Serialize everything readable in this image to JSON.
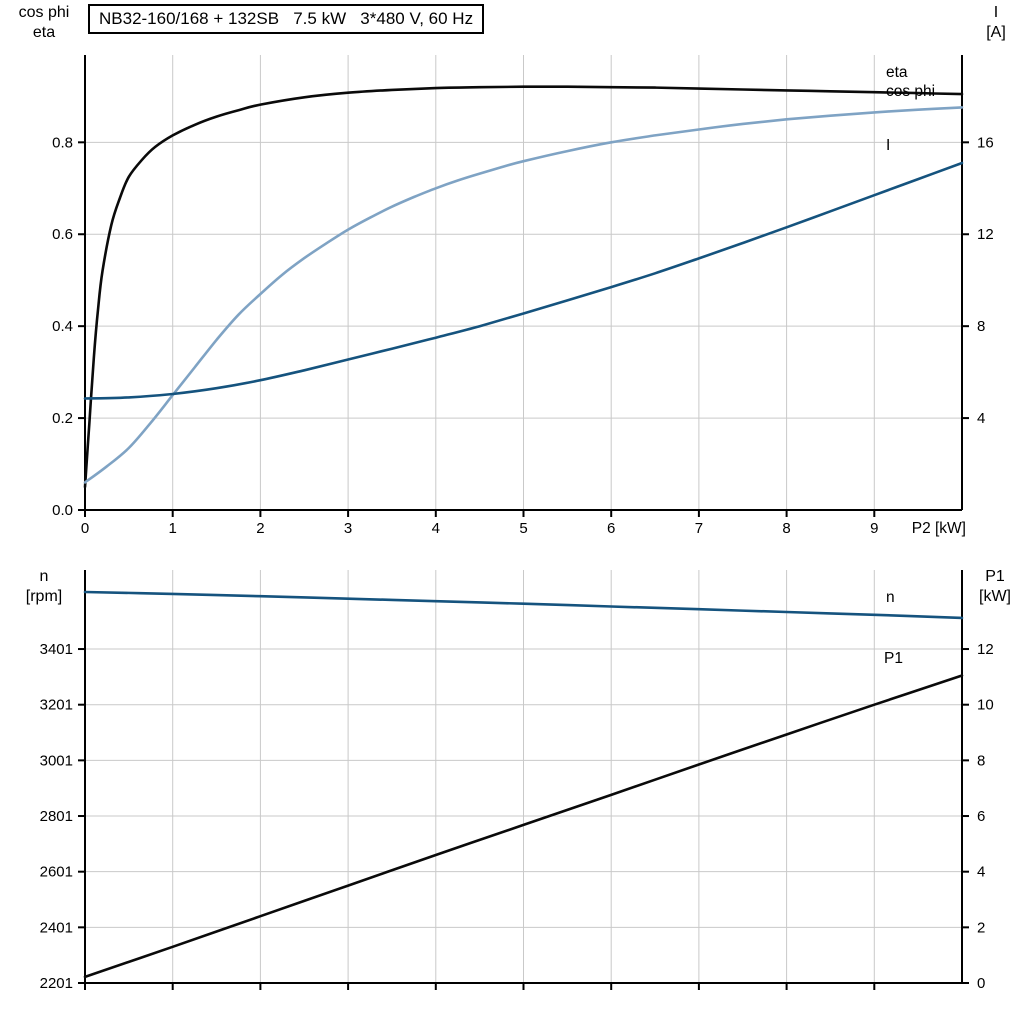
{
  "page": {
    "background": "#ffffff"
  },
  "colors": {
    "axis": "#000000",
    "grid": "#c9c9c9",
    "black_curve": "#0a0a0a",
    "cos_phi_curve": "#7fa3c4",
    "dark_blue_curve": "#15537e"
  },
  "chart_data": [
    {
      "type": "line",
      "title": "NB32-160/168 + 132SB   7.5 kW   3*480 V, 60 Hz",
      "x_axis": {
        "label": "P2 [kW]",
        "range": [
          0,
          10
        ],
        "ticks": [
          "0",
          "1",
          "2",
          "3",
          "4",
          "5",
          "6",
          "7",
          "8",
          "9"
        ],
        "show_tick_labels": true
      },
      "y_left": {
        "label_lines": [
          "cos phi",
          "eta"
        ],
        "range": [
          0,
          0.99
        ],
        "ticks": [
          "0.0",
          "0.2",
          "0.4",
          "0.6",
          "0.8"
        ]
      },
      "y_right": {
        "label_lines": [
          "I",
          "[A]"
        ],
        "range": [
          0,
          19.8
        ],
        "ticks": [
          "4",
          "8",
          "12",
          "16"
        ]
      },
      "layout_hints": {
        "grid": true,
        "labels": "inline-right"
      },
      "series": [
        {
          "name": "eta",
          "axis": "left",
          "color": "#0a0a0a",
          "points": [
            [
              0,
              0.05
            ],
            [
              0.05,
              0.19
            ],
            [
              0.1,
              0.33
            ],
            [
              0.15,
              0.44
            ],
            [
              0.2,
              0.52
            ],
            [
              0.3,
              0.62
            ],
            [
              0.4,
              0.68
            ],
            [
              0.5,
              0.725
            ],
            [
              0.65,
              0.762
            ],
            [
              0.8,
              0.79
            ],
            [
              1,
              0.815
            ],
            [
              1.25,
              0.838
            ],
            [
              1.5,
              0.856
            ],
            [
              1.75,
              0.87
            ],
            [
              2,
              0.882
            ],
            [
              2.5,
              0.898
            ],
            [
              3,
              0.908
            ],
            [
              3.5,
              0.914
            ],
            [
              4,
              0.918
            ],
            [
              4.5,
              0.92
            ],
            [
              5,
              0.921
            ],
            [
              5.5,
              0.921
            ],
            [
              6,
              0.92
            ],
            [
              6.5,
              0.919
            ],
            [
              7,
              0.917
            ],
            [
              7.5,
              0.915
            ],
            [
              8,
              0.913
            ],
            [
              8.5,
              0.911
            ],
            [
              9,
              0.909
            ],
            [
              9.5,
              0.907
            ],
            [
              10,
              0.905
            ]
          ]
        },
        {
          "name": "cos phi",
          "axis": "left",
          "color": "#7fa3c4",
          "points": [
            [
              0,
              0.06
            ],
            [
              0.25,
              0.095
            ],
            [
              0.5,
              0.135
            ],
            [
              0.75,
              0.19
            ],
            [
              1,
              0.25
            ],
            [
              1.25,
              0.31
            ],
            [
              1.5,
              0.37
            ],
            [
              1.75,
              0.425
            ],
            [
              2,
              0.47
            ],
            [
              2.25,
              0.512
            ],
            [
              2.5,
              0.548
            ],
            [
              2.75,
              0.58
            ],
            [
              3,
              0.61
            ],
            [
              3.25,
              0.636
            ],
            [
              3.5,
              0.66
            ],
            [
              3.75,
              0.681
            ],
            [
              4,
              0.7
            ],
            [
              4.25,
              0.717
            ],
            [
              4.5,
              0.732
            ],
            [
              4.75,
              0.746
            ],
            [
              5,
              0.759
            ],
            [
              5.5,
              0.781
            ],
            [
              6,
              0.8
            ],
            [
              6.5,
              0.815
            ],
            [
              7,
              0.828
            ],
            [
              7.5,
              0.84
            ],
            [
              8,
              0.85
            ],
            [
              8.5,
              0.858
            ],
            [
              9,
              0.865
            ],
            [
              9.5,
              0.871
            ],
            [
              10,
              0.876
            ]
          ]
        },
        {
          "name": "I",
          "axis": "right",
          "color": "#15537e",
          "points": [
            [
              0,
              4.85
            ],
            [
              0.5,
              4.9
            ],
            [
              1,
              5.05
            ],
            [
              1.5,
              5.3
            ],
            [
              2,
              5.65
            ],
            [
              2.5,
              6.08
            ],
            [
              3,
              6.55
            ],
            [
              3.5,
              7.02
            ],
            [
              4,
              7.5
            ],
            [
              4.5,
              8.0
            ],
            [
              5,
              8.55
            ],
            [
              5.5,
              9.12
            ],
            [
              6,
              9.7
            ],
            [
              6.5,
              10.3
            ],
            [
              7,
              10.95
            ],
            [
              7.5,
              11.62
            ],
            [
              8,
              12.3
            ],
            [
              8.5,
              13.0
            ],
            [
              9,
              13.7
            ],
            [
              9.5,
              14.4
            ],
            [
              10,
              15.1
            ]
          ]
        }
      ]
    },
    {
      "type": "line",
      "title": "",
      "x_axis": {
        "label": "",
        "range": [
          0,
          10
        ],
        "ticks": [
          "0",
          "1",
          "2",
          "3",
          "4",
          "5",
          "6",
          "7",
          "8",
          "9"
        ],
        "show_tick_labels": false
      },
      "y_left": {
        "label_lines": [
          "n",
          "[rpm]"
        ],
        "range": [
          2201,
          3685
        ],
        "ticks": [
          "2201",
          "2401",
          "2601",
          "2801",
          "3001",
          "3201",
          "3401"
        ]
      },
      "y_right": {
        "label_lines": [
          "P1",
          "[kW]"
        ],
        "range": [
          0,
          14.84
        ],
        "ticks": [
          "0",
          "2",
          "4",
          "6",
          "8",
          "10",
          "12"
        ]
      },
      "layout_hints": {
        "grid": true,
        "labels": "inline-right"
      },
      "series": [
        {
          "name": "n",
          "axis": "left",
          "color": "#15537e",
          "points": [
            [
              0,
              3606
            ],
            [
              1,
              3599
            ],
            [
              2,
              3591
            ],
            [
              3,
              3582
            ],
            [
              4,
              3573
            ],
            [
              5,
              3564
            ],
            [
              6,
              3554
            ],
            [
              7,
              3544
            ],
            [
              8,
              3534
            ],
            [
              9,
              3524
            ],
            [
              10,
              3513
            ]
          ]
        },
        {
          "name": "P1",
          "axis": "right",
          "color": "#0a0a0a",
          "points": [
            [
              0,
              0.22
            ],
            [
              1,
              1.3
            ],
            [
              2,
              2.4
            ],
            [
              3,
              3.5
            ],
            [
              4,
              4.6
            ],
            [
              5,
              5.68
            ],
            [
              6,
              6.76
            ],
            [
              7,
              7.85
            ],
            [
              8,
              8.93
            ],
            [
              9,
              10.0
            ],
            [
              10,
              11.05
            ]
          ]
        }
      ]
    }
  ]
}
